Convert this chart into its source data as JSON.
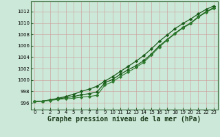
{
  "background_color": "#cce8d8",
  "grid_color": "#aaccbb",
  "line_color_dark": "#1a5c1a",
  "line_color_mid": "#2d7a2d",
  "xlabel": "Graphe pression niveau de la mer (hPa)",
  "xlabel_fontsize": 7,
  "yticks": [
    996,
    998,
    1000,
    1002,
    1004,
    1006,
    1008,
    1010,
    1012
  ],
  "xticks": [
    0,
    1,
    2,
    3,
    4,
    5,
    6,
    7,
    8,
    9,
    10,
    11,
    12,
    13,
    14,
    15,
    16,
    17,
    18,
    19,
    20,
    21,
    22,
    23
  ],
  "ylim": [
    994.8,
    1013.8
  ],
  "xlim": [
    -0.5,
    23.5
  ],
  "series_main": [
    996.2,
    996.3,
    996.5,
    996.7,
    996.9,
    997.1,
    997.4,
    997.6,
    997.9,
    999.5,
    1000.1,
    1001.0,
    1001.8,
    1002.5,
    1003.4,
    1004.6,
    1006.0,
    1007.1,
    1008.2,
    1009.2,
    1010.0,
    1011.1,
    1012.0,
    1012.7
  ],
  "series_high": [
    996.2,
    996.3,
    996.5,
    996.8,
    997.1,
    997.5,
    998.0,
    998.4,
    998.9,
    999.8,
    1000.6,
    1001.5,
    1002.4,
    1003.3,
    1004.3,
    1005.5,
    1006.8,
    1007.9,
    1009.0,
    1009.9,
    1010.7,
    1011.6,
    1012.4,
    1013.0
  ],
  "series_low": [
    996.2,
    996.3,
    996.4,
    996.6,
    996.7,
    996.8,
    997.0,
    997.1,
    997.3,
    999.1,
    999.7,
    1000.6,
    1001.4,
    1002.2,
    1003.1,
    1004.4,
    1005.8,
    1007.0,
    1008.1,
    1009.1,
    1009.9,
    1011.0,
    1011.9,
    1012.6
  ]
}
